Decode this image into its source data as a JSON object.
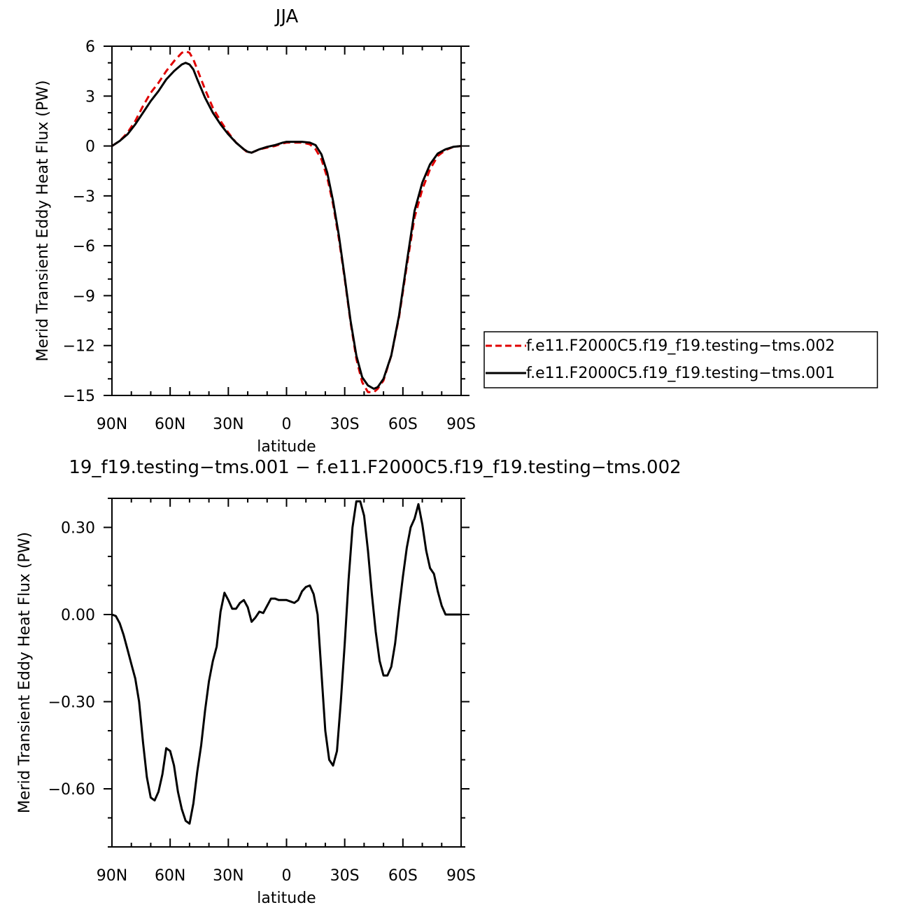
{
  "chart_data": [
    {
      "type": "line",
      "title": "JJA",
      "xlabel": "latitude",
      "ylabel": "Merid Transient Eddy Heat Flux (PW)",
      "xlim": [
        -90,
        90
      ],
      "ylim": [
        -15,
        6
      ],
      "xticks": [
        -90,
        -60,
        -30,
        0,
        30,
        60,
        90
      ],
      "xtick_labels": [
        "90N",
        "60N",
        "30N",
        "0",
        "30S",
        "60S",
        "90S"
      ],
      "yticks": [
        6,
        3,
        0,
        -3,
        -6,
        -9,
        -12,
        -15
      ],
      "ytick_labels": [
        "6",
        "3",
        "0",
        "−3",
        "−6",
        "−9",
        "−12",
        "−15"
      ],
      "grid": false,
      "legend_position": "right",
      "series": [
        {
          "name": "f.e11.F2000C5.f19_f19.testing−tms.002",
          "color": "#e00000",
          "dash": "dashed",
          "x": [
            -90,
            -86,
            -82,
            -78,
            -74,
            -70,
            -66,
            -62,
            -58,
            -54,
            -52,
            -50,
            -48,
            -46,
            -42,
            -38,
            -34,
            -30,
            -26,
            -22,
            -20,
            -18,
            -14,
            -10,
            -6,
            -2,
            0,
            4,
            8,
            12,
            15,
            18,
            21,
            24,
            27,
            30,
            33,
            36,
            39,
            42,
            45,
            47,
            50,
            54,
            58,
            62,
            66,
            70,
            74,
            78,
            82,
            86,
            90
          ],
          "y": [
            0.0,
            0.3,
            0.8,
            1.5,
            2.4,
            3.2,
            3.8,
            4.5,
            5.1,
            5.6,
            5.7,
            5.6,
            5.2,
            4.6,
            3.4,
            2.3,
            1.5,
            0.8,
            0.2,
            -0.2,
            -0.4,
            -0.4,
            -0.2,
            -0.1,
            0.0,
            0.15,
            0.2,
            0.2,
            0.2,
            0.1,
            -0.2,
            -0.8,
            -1.9,
            -3.5,
            -5.6,
            -8.0,
            -10.6,
            -12.8,
            -14.2,
            -14.8,
            -14.8,
            -14.6,
            -14.1,
            -12.6,
            -10.3,
            -7.2,
            -4.3,
            -2.6,
            -1.4,
            -0.6,
            -0.25,
            -0.05,
            0.0
          ]
        },
        {
          "name": "f.e11.F2000C5.f19_f19.testing−tms.001",
          "color": "#000000",
          "dash": "solid",
          "x": [
            -90,
            -86,
            -82,
            -78,
            -74,
            -70,
            -66,
            -62,
            -58,
            -54,
            -52,
            -50,
            -48,
            -46,
            -42,
            -38,
            -34,
            -30,
            -26,
            -22,
            -20,
            -18,
            -14,
            -10,
            -6,
            -2,
            0,
            4,
            8,
            12,
            15,
            18,
            21,
            24,
            27,
            30,
            33,
            36,
            39,
            42,
            45,
            47,
            50,
            54,
            58,
            62,
            66,
            70,
            74,
            78,
            82,
            86,
            90
          ],
          "y": [
            0.0,
            0.3,
            0.7,
            1.3,
            2.0,
            2.7,
            3.3,
            4.0,
            4.5,
            4.9,
            5.0,
            4.9,
            4.6,
            4.0,
            2.9,
            2.0,
            1.3,
            0.7,
            0.2,
            -0.2,
            -0.35,
            -0.4,
            -0.2,
            -0.05,
            0.05,
            0.2,
            0.25,
            0.25,
            0.25,
            0.2,
            0.05,
            -0.5,
            -1.6,
            -3.3,
            -5.4,
            -7.9,
            -10.5,
            -12.6,
            -13.9,
            -14.4,
            -14.6,
            -14.5,
            -14.0,
            -12.6,
            -10.2,
            -7.0,
            -3.9,
            -2.2,
            -1.1,
            -0.45,
            -0.2,
            -0.05,
            0.0
          ]
        }
      ]
    },
    {
      "type": "line",
      "title": "19_f19.testing−tms.001 − f.e11.F2000C5.f19_f19.testing−tms.002",
      "xlabel": "latitude",
      "ylabel": "Merid Transient Eddy Heat Flux (PW)",
      "xlim": [
        -90,
        90
      ],
      "ylim": [
        -0.8,
        0.4
      ],
      "xticks": [
        -90,
        -60,
        -30,
        0,
        30,
        60,
        90
      ],
      "xtick_labels": [
        "90N",
        "60N",
        "30N",
        "0",
        "30S",
        "60S",
        "90S"
      ],
      "yticks": [
        0.3,
        0.0,
        -0.3,
        -0.6
      ],
      "ytick_labels": [
        "0.30",
        "0.00",
        "−0.30",
        "−0.60"
      ],
      "grid": false,
      "series": [
        {
          "color": "#000000",
          "dash": "solid",
          "x": [
            -90,
            -88,
            -86,
            -84,
            -82,
            -80,
            -78,
            -76,
            -74,
            -72,
            -70,
            -68,
            -66,
            -64,
            -62,
            -60,
            -58,
            -56,
            -54,
            -52,
            -50,
            -48,
            -46,
            -44,
            -42,
            -40,
            -38,
            -36,
            -34,
            -32,
            -30,
            -28,
            -26,
            -24,
            -22,
            -20,
            -18,
            -16,
            -14,
            -12,
            -10,
            -8,
            -6,
            -4,
            -2,
            0,
            2,
            4,
            6,
            8,
            10,
            12,
            14,
            16,
            18,
            20,
            22,
            24,
            26,
            28,
            30,
            32,
            34,
            36,
            38,
            40,
            42,
            44,
            46,
            48,
            50,
            52,
            54,
            56,
            58,
            60,
            62,
            64,
            66,
            68,
            70,
            72,
            74,
            76,
            78,
            80,
            82,
            84,
            86,
            88,
            90
          ],
          "y": [
            0.0,
            -0.005,
            -0.03,
            -0.07,
            -0.12,
            -0.17,
            -0.22,
            -0.3,
            -0.44,
            -0.56,
            -0.63,
            -0.64,
            -0.61,
            -0.55,
            -0.46,
            -0.47,
            -0.52,
            -0.61,
            -0.67,
            -0.71,
            -0.72,
            -0.65,
            -0.54,
            -0.45,
            -0.33,
            -0.23,
            -0.16,
            -0.11,
            0.01,
            0.075,
            0.05,
            0.02,
            0.02,
            0.04,
            0.05,
            0.025,
            -0.025,
            -0.01,
            0.01,
            0.005,
            0.03,
            0.055,
            0.055,
            0.05,
            0.05,
            0.05,
            0.045,
            0.04,
            0.05,
            0.08,
            0.095,
            0.1,
            0.07,
            0.0,
            -0.2,
            -0.4,
            -0.5,
            -0.52,
            -0.47,
            -0.3,
            -0.1,
            0.12,
            0.3,
            0.39,
            0.39,
            0.34,
            0.22,
            0.07,
            -0.06,
            -0.16,
            -0.21,
            -0.21,
            -0.18,
            -0.1,
            0.02,
            0.13,
            0.23,
            0.3,
            0.33,
            0.38,
            0.31,
            0.22,
            0.16,
            0.14,
            0.08,
            0.03,
            0.0,
            0.0,
            0.0,
            0.0,
            0.0
          ]
        }
      ]
    }
  ]
}
